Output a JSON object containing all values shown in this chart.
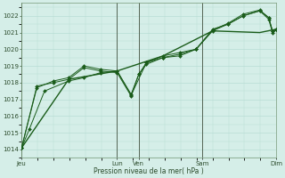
{
  "bg_color": "#d5eee8",
  "grid_color": "#b8ddd4",
  "line_color": "#1a5c1a",
  "vline_color": "#556655",
  "ylim": [
    1013.5,
    1022.8
  ],
  "yticks": [
    1014,
    1015,
    1016,
    1017,
    1018,
    1019,
    1020,
    1021,
    1022
  ],
  "xlabel": "Pression niveau de la mer( hPa )",
  "xtick_labels": [
    "Jeu",
    "Lun",
    "Ven",
    "Sam",
    "Dim"
  ],
  "xtick_positions": [
    0.0,
    0.375,
    0.46,
    0.71,
    1.0
  ],
  "day_vlines": [
    0.0,
    0.375,
    0.46,
    0.71,
    1.0
  ],
  "figsize": [
    3.2,
    2.0
  ],
  "dpi": 100,
  "series1_x": [
    0,
    0.03,
    0.09,
    0.185,
    0.245,
    0.31,
    0.375,
    0.43,
    0.46,
    0.49,
    0.555,
    0.62,
    0.685,
    0.75,
    0.81,
    0.87,
    0.935,
    0.97,
    0.985,
    1.0
  ],
  "series1_y": [
    1014.1,
    1015.2,
    1017.5,
    1018.1,
    1018.3,
    1018.6,
    1018.7,
    1017.3,
    1018.5,
    1019.1,
    1019.5,
    1019.6,
    1020.0,
    1021.2,
    1021.5,
    1022.0,
    1022.3,
    1021.9,
    1021.1,
    1021.2
  ],
  "series2_x": [
    0,
    0.06,
    0.125,
    0.185,
    0.245,
    0.31,
    0.375,
    0.43,
    0.46,
    0.49,
    0.555,
    0.62,
    0.685,
    0.75,
    0.81,
    0.87,
    0.935,
    0.97,
    0.985,
    1.0
  ],
  "series2_y": [
    1014.1,
    1017.8,
    1018.0,
    1018.2,
    1018.9,
    1018.7,
    1018.6,
    1017.2,
    1018.5,
    1019.2,
    1019.5,
    1019.7,
    1020.0,
    1021.1,
    1021.5,
    1022.0,
    1022.3,
    1021.8,
    1021.0,
    1021.2
  ],
  "series3_x": [
    0,
    0.06,
    0.125,
    0.185,
    0.245,
    0.31,
    0.375,
    0.43,
    0.49,
    0.555,
    0.62,
    0.685,
    0.75,
    0.81,
    0.87,
    0.935,
    0.97,
    0.985,
    1.0
  ],
  "series3_y": [
    1014.1,
    1017.7,
    1018.1,
    1018.3,
    1019.0,
    1018.8,
    1018.7,
    1017.25,
    1019.2,
    1019.6,
    1019.8,
    1020.0,
    1021.15,
    1021.55,
    1022.1,
    1022.35,
    1021.9,
    1021.1,
    1021.2
  ],
  "smooth_x": [
    0,
    0.185,
    0.375,
    0.555,
    0.75,
    0.935,
    1.0
  ],
  "smooth_y": [
    1014.1,
    1018.2,
    1018.7,
    1019.6,
    1021.1,
    1021.0,
    1021.2
  ]
}
